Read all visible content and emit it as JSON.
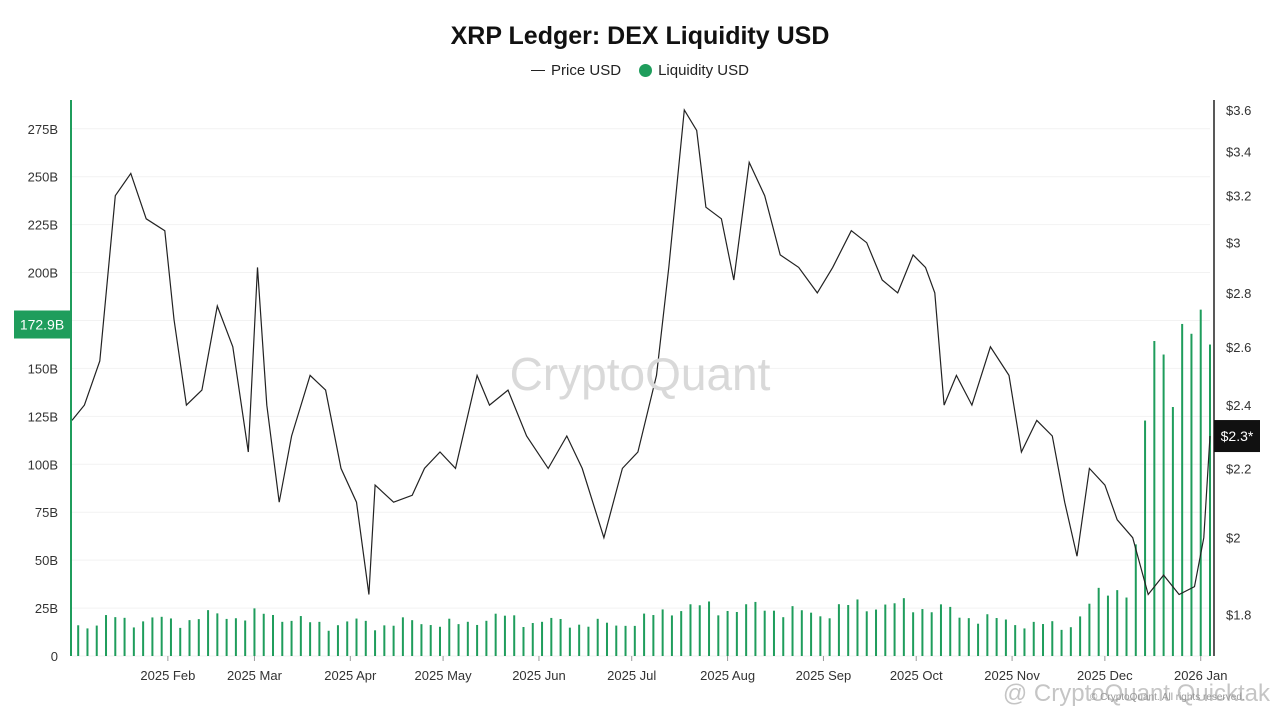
{
  "title": "XRP Ledger: DEX Liquidity USD",
  "legend": {
    "price_label": "Price USD",
    "liquidity_label": "Liquidity USD"
  },
  "watermark": "CryptoQuant",
  "footer": "© CryptoQuant. All rights reserved.",
  "bottom_watermark": "@ CryptoQuant Quicktak",
  "colors": {
    "liquidity": "#1f9d5c",
    "price": "#222222",
    "grid": "#f2f2f2"
  },
  "left_badge": "172.9B",
  "right_badge": "$2.3*",
  "chart_data": {
    "type": "bar+line",
    "left_axis": {
      "label": "",
      "ticks": [
        "0",
        "25B",
        "50B",
        "75B",
        "100B",
        "125B",
        "150B",
        "175B",
        "200B",
        "225B",
        "250B",
        "275B"
      ],
      "range": [
        0,
        290
      ]
    },
    "right_axis": {
      "label": "",
      "ticks": [
        "$1.8",
        "$2",
        "$2.2",
        "$2.4",
        "$2.6",
        "$2.8",
        "$3",
        "$3.2",
        "$3.4",
        "$3.6"
      ],
      "scale": "log",
      "range": [
        1.7,
        3.65
      ]
    },
    "x_ticks": [
      "2025 Feb",
      "2025 Mar",
      "2025 Apr",
      "2025 May",
      "2025 Jun",
      "2025 Jul",
      "2025 Aug",
      "2025 Sep",
      "2025 Oct",
      "2025 Nov",
      "2025 Dec",
      "2026 Jan"
    ],
    "x_range": [
      "2025-01-01",
      "2026-01-04"
    ],
    "liquidity_series": {
      "name": "Liquidity USD",
      "unit": "B USD",
      "points": [
        [
          "2025-01-01",
          17
        ],
        [
          "2025-01-08",
          16
        ],
        [
          "2025-01-15",
          20
        ],
        [
          "2025-01-22",
          18
        ],
        [
          "2025-01-29",
          19
        ],
        [
          "2025-02-05",
          18
        ],
        [
          "2025-02-12",
          20
        ],
        [
          "2025-02-19",
          22
        ],
        [
          "2025-02-26",
          20
        ],
        [
          "2025-03-05",
          22
        ],
        [
          "2025-03-12",
          20
        ],
        [
          "2025-03-19",
          17
        ],
        [
          "2025-03-26",
          16
        ],
        [
          "2025-04-02",
          18
        ],
        [
          "2025-04-09",
          16
        ],
        [
          "2025-04-16",
          17
        ],
        [
          "2025-04-23",
          18
        ],
        [
          "2025-04-30",
          17
        ],
        [
          "2025-05-07",
          16
        ],
        [
          "2025-05-14",
          20
        ],
        [
          "2025-05-21",
          20
        ],
        [
          "2025-05-28",
          18
        ],
        [
          "2025-06-04",
          18
        ],
        [
          "2025-06-11",
          17
        ],
        [
          "2025-06-18",
          17
        ],
        [
          "2025-06-25",
          16
        ],
        [
          "2025-07-02",
          18
        ],
        [
          "2025-07-09",
          21
        ],
        [
          "2025-07-16",
          26
        ],
        [
          "2025-07-23",
          25
        ],
        [
          "2025-07-30",
          25
        ],
        [
          "2025-08-06",
          24
        ],
        [
          "2025-08-13",
          26
        ],
        [
          "2025-08-20",
          23
        ],
        [
          "2025-08-27",
          22
        ],
        [
          "2025-09-03",
          23
        ],
        [
          "2025-09-10",
          26
        ],
        [
          "2025-09-17",
          27
        ],
        [
          "2025-09-24",
          26
        ],
        [
          "2025-10-01",
          26
        ],
        [
          "2025-10-08",
          25
        ],
        [
          "2025-10-15",
          21
        ],
        [
          "2025-10-22",
          20
        ],
        [
          "2025-10-29",
          18
        ],
        [
          "2025-11-05",
          17
        ],
        [
          "2025-11-12",
          16
        ],
        [
          "2025-11-19",
          15
        ],
        [
          "2025-11-26",
          26
        ],
        [
          "2025-12-03",
          36
        ],
        [
          "2025-12-10",
          35
        ],
        [
          "2025-12-17",
          165
        ],
        [
          "2025-12-24",
          158
        ],
        [
          "2025-12-31",
          160
        ],
        [
          "2026-01-04",
          172.9
        ]
      ]
    },
    "price_series": {
      "name": "Price USD",
      "unit": "USD",
      "points": [
        [
          "2025-01-01",
          2.35
        ],
        [
          "2025-01-05",
          2.4
        ],
        [
          "2025-01-10",
          2.55
        ],
        [
          "2025-01-15",
          3.2
        ],
        [
          "2025-01-20",
          3.3
        ],
        [
          "2025-01-25",
          3.1
        ],
        [
          "2025-01-31",
          3.05
        ],
        [
          "2025-02-03",
          2.7
        ],
        [
          "2025-02-07",
          2.4
        ],
        [
          "2025-02-12",
          2.45
        ],
        [
          "2025-02-17",
          2.75
        ],
        [
          "2025-02-22",
          2.6
        ],
        [
          "2025-02-27",
          2.25
        ],
        [
          "2025-03-02",
          2.9
        ],
        [
          "2025-03-05",
          2.4
        ],
        [
          "2025-03-09",
          2.1
        ],
        [
          "2025-03-13",
          2.3
        ],
        [
          "2025-03-19",
          2.5
        ],
        [
          "2025-03-24",
          2.45
        ],
        [
          "2025-03-29",
          2.2
        ],
        [
          "2025-04-03",
          2.1
        ],
        [
          "2025-04-07",
          1.85
        ],
        [
          "2025-04-09",
          2.15
        ],
        [
          "2025-04-15",
          2.1
        ],
        [
          "2025-04-21",
          2.12
        ],
        [
          "2025-04-25",
          2.2
        ],
        [
          "2025-04-30",
          2.25
        ],
        [
          "2025-05-05",
          2.2
        ],
        [
          "2025-05-12",
          2.5
        ],
        [
          "2025-05-16",
          2.4
        ],
        [
          "2025-05-22",
          2.45
        ],
        [
          "2025-05-28",
          2.3
        ],
        [
          "2025-06-04",
          2.2
        ],
        [
          "2025-06-10",
          2.3
        ],
        [
          "2025-06-15",
          2.2
        ],
        [
          "2025-06-22",
          2.0
        ],
        [
          "2025-06-28",
          2.2
        ],
        [
          "2025-07-03",
          2.25
        ],
        [
          "2025-07-09",
          2.5
        ],
        [
          "2025-07-13",
          2.9
        ],
        [
          "2025-07-18",
          3.6
        ],
        [
          "2025-07-22",
          3.5
        ],
        [
          "2025-07-25",
          3.15
        ],
        [
          "2025-07-30",
          3.1
        ],
        [
          "2025-08-03",
          2.85
        ],
        [
          "2025-08-08",
          3.35
        ],
        [
          "2025-08-13",
          3.2
        ],
        [
          "2025-08-18",
          2.95
        ],
        [
          "2025-08-24",
          2.9
        ],
        [
          "2025-08-30",
          2.8
        ],
        [
          "2025-09-04",
          2.9
        ],
        [
          "2025-09-10",
          3.05
        ],
        [
          "2025-09-15",
          3.0
        ],
        [
          "2025-09-20",
          2.85
        ],
        [
          "2025-09-25",
          2.8
        ],
        [
          "2025-09-30",
          2.95
        ],
        [
          "2025-10-04",
          2.9
        ],
        [
          "2025-10-07",
          2.8
        ],
        [
          "2025-10-10",
          2.4
        ],
        [
          "2025-10-14",
          2.5
        ],
        [
          "2025-10-19",
          2.4
        ],
        [
          "2025-10-25",
          2.6
        ],
        [
          "2025-10-31",
          2.5
        ],
        [
          "2025-11-04",
          2.25
        ],
        [
          "2025-11-09",
          2.35
        ],
        [
          "2025-11-14",
          2.3
        ],
        [
          "2025-11-18",
          2.1
        ],
        [
          "2025-11-22",
          1.95
        ],
        [
          "2025-11-26",
          2.2
        ],
        [
          "2025-12-01",
          2.15
        ],
        [
          "2025-12-05",
          2.05
        ],
        [
          "2025-12-10",
          2.0
        ],
        [
          "2025-12-15",
          1.85
        ],
        [
          "2025-12-20",
          1.9
        ],
        [
          "2025-12-25",
          1.85
        ],
        [
          "2025-12-30",
          1.87
        ],
        [
          "2026-01-02",
          2.0
        ],
        [
          "2026-01-04",
          2.3
        ]
      ]
    }
  }
}
